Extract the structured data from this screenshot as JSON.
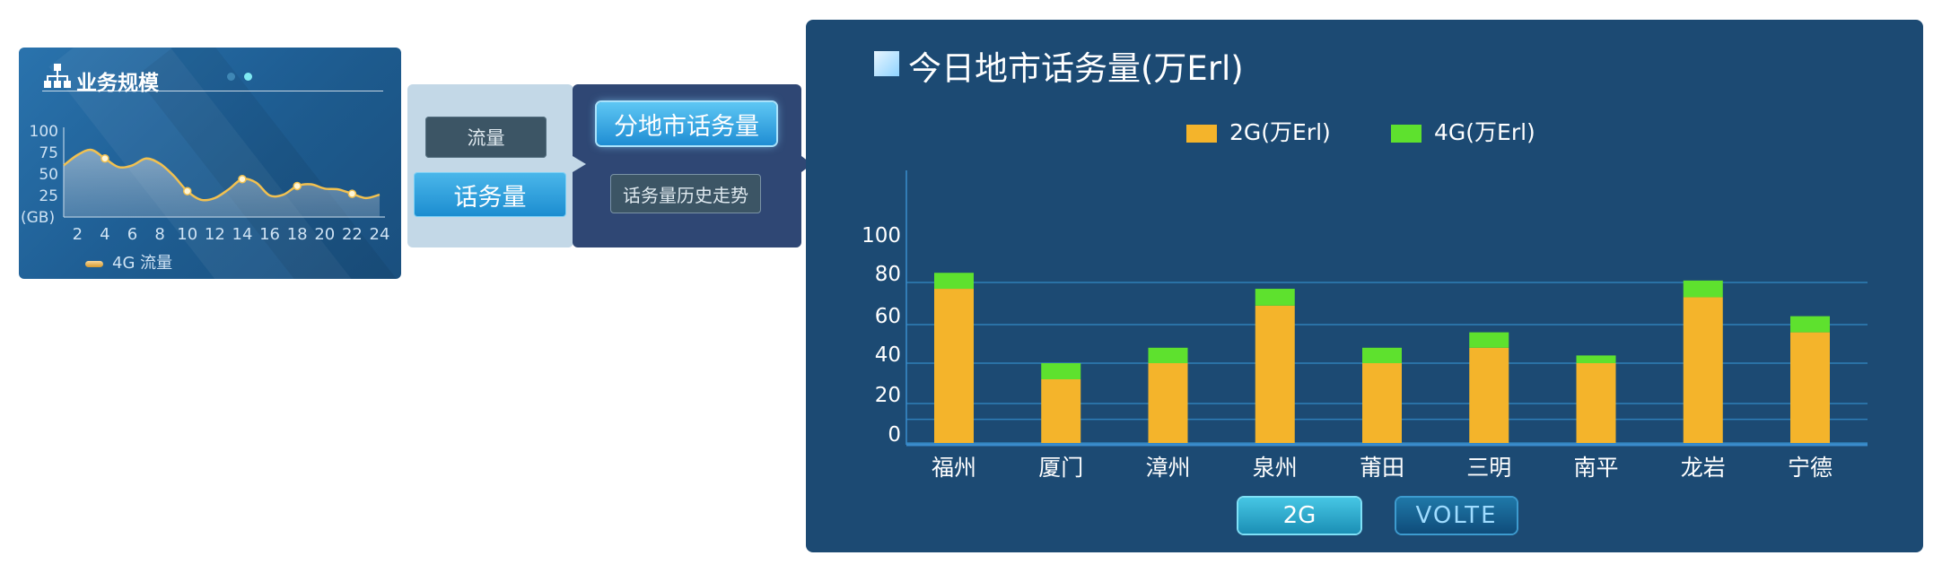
{
  "scale_panel": {
    "title": "业务规模",
    "legend_label": "4G 流量",
    "colors": {
      "line": "#f2c150",
      "dot_inactive": "#3f87b5",
      "dot_active": "#7fe9f2"
    }
  },
  "menu": {
    "left": {
      "items": [
        {
          "label": "流量"
        },
        {
          "label": "话务量"
        }
      ]
    },
    "right": {
      "items": [
        {
          "label": "分地市话务量"
        },
        {
          "label": "话务量历史走势"
        }
      ]
    }
  },
  "big_panel": {
    "title": "今日地市话务量(万Erl)",
    "tabs": [
      {
        "label": "2G"
      },
      {
        "label": "VOLTE"
      }
    ]
  },
  "chart_data": [
    {
      "type": "area",
      "title": "",
      "xlabel": "",
      "ylabel": "(GB)",
      "x": [
        1,
        2,
        3,
        4,
        5,
        6,
        7,
        8,
        9,
        10,
        11,
        12,
        13,
        14,
        15,
        16,
        17,
        18,
        19,
        20,
        21,
        22,
        23,
        24
      ],
      "x_ticks": [
        "2",
        "4",
        "6",
        "8",
        "10",
        "12",
        "14",
        "16",
        "18",
        "20",
        "22",
        "24"
      ],
      "y_ticks": [
        "100",
        "75",
        "50",
        "25"
      ],
      "ylim": [
        0,
        100
      ],
      "series": [
        {
          "name": "4G 流量",
          "values": [
            60,
            72,
            78,
            68,
            58,
            60,
            68,
            62,
            48,
            30,
            20,
            22,
            32,
            44,
            40,
            25,
            26,
            36,
            38,
            33,
            32,
            27,
            22,
            26
          ],
          "markers": [
            4,
            10,
            14,
            18,
            22
          ],
          "color": "#f2c150"
        }
      ],
      "legend": "bottom-left"
    },
    {
      "type": "bar",
      "stacked": true,
      "title": "今日地市话务量(万Erl)",
      "categories": [
        "福州",
        "厦门",
        "漳州",
        "泉州",
        "莆田",
        "三明",
        "南平",
        "龙岩",
        "宁德"
      ],
      "series": [
        {
          "name": "2G(万Erl)",
          "values": [
            77,
            32,
            40,
            69,
            40,
            48,
            40,
            73,
            56
          ],
          "color": "#f4b42b"
        },
        {
          "name": "4G(万Erl)",
          "values": [
            8,
            8,
            8,
            8,
            8,
            8,
            4,
            8,
            8
          ],
          "color": "#5ee12e"
        }
      ],
      "y_ticks": [
        "0",
        "20",
        "40",
        "60",
        "80",
        "100"
      ],
      "ylim": [
        0,
        100
      ],
      "grid": true,
      "legend": "top-center"
    }
  ]
}
